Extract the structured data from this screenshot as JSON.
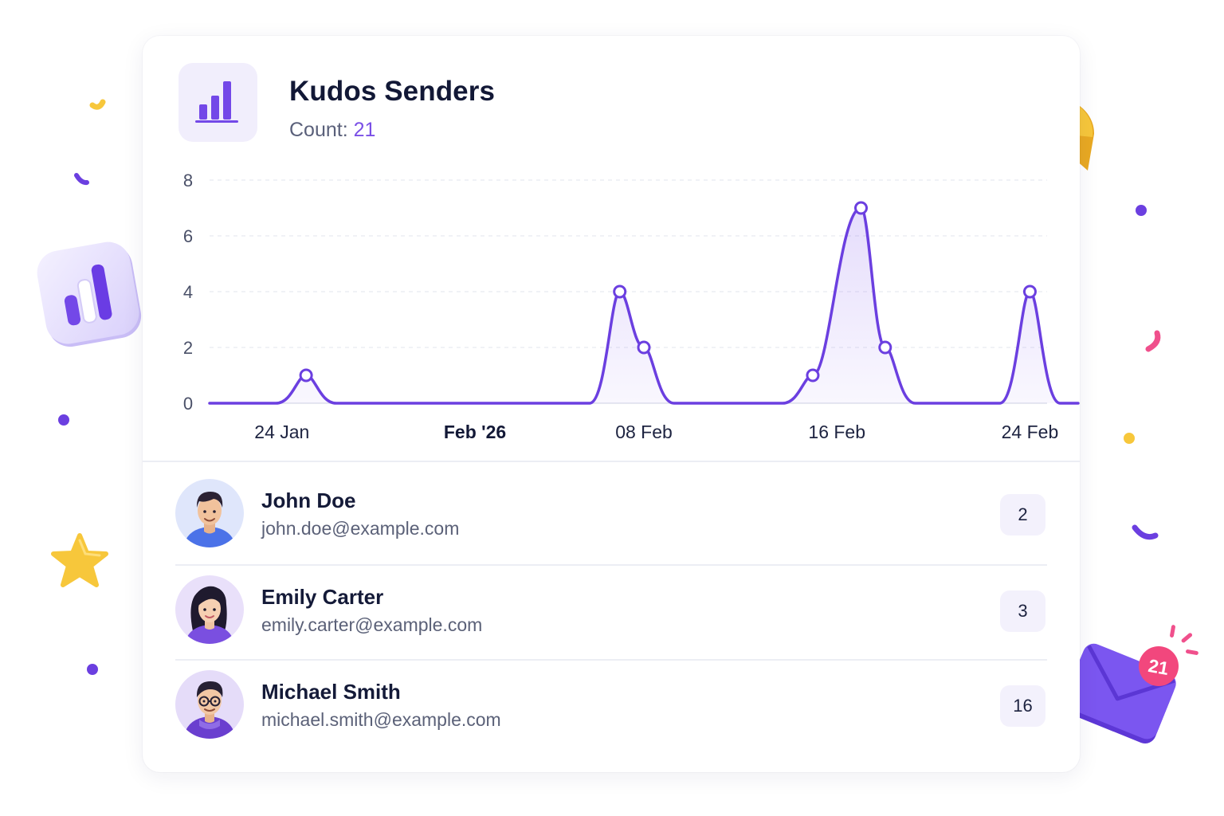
{
  "widget": {
    "title": "Kudos Senders",
    "count_label": "Count:",
    "count_value": "21",
    "icon": "bar-chart-icon"
  },
  "chart_data": {
    "type": "line",
    "x_ticks": [
      "24 Jan",
      "Feb '26",
      "08 Feb",
      "16 Feb",
      "24 Feb"
    ],
    "y_ticks": [
      "0",
      "2",
      "4",
      "6",
      "8"
    ],
    "ylim": [
      0,
      8
    ],
    "xlim": [
      "2026-01-21",
      "2026-02-26"
    ],
    "grid": true,
    "color": "#6b3fe0",
    "points": [
      {
        "x": "2026-01-25",
        "y": 1
      },
      {
        "x": "2026-02-07",
        "y": 4
      },
      {
        "x": "2026-02-08",
        "y": 2
      },
      {
        "x": "2026-02-15",
        "y": 1
      },
      {
        "x": "2026-02-17",
        "y": 7
      },
      {
        "x": "2026-02-18",
        "y": 2
      },
      {
        "x": "2026-02-24",
        "y": 4
      }
    ]
  },
  "senders": [
    {
      "name": "John Doe",
      "email": "john.doe@example.com",
      "count": "2",
      "avatar": "john-avatar"
    },
    {
      "name": "Emily Carter",
      "email": "emily.carter@example.com",
      "count": "3",
      "avatar": "emily-avatar"
    },
    {
      "name": "Michael Smith",
      "email": "michael.smith@example.com",
      "count": "16",
      "avatar": "michael-avatar"
    }
  ],
  "decorations": {
    "mail_badge_count": "21",
    "icons": [
      "bar-chart-3d-icon",
      "pie-chart-3d-icon",
      "star-icon",
      "mail-icon"
    ]
  },
  "colors": {
    "accent": "#6b3fe0",
    "accent_light": "#f1eefc",
    "text_primary": "#141a38",
    "text_secondary": "#5b6178",
    "confetti_yellow": "#f7c73b",
    "confetti_pink": "#f0508c"
  }
}
